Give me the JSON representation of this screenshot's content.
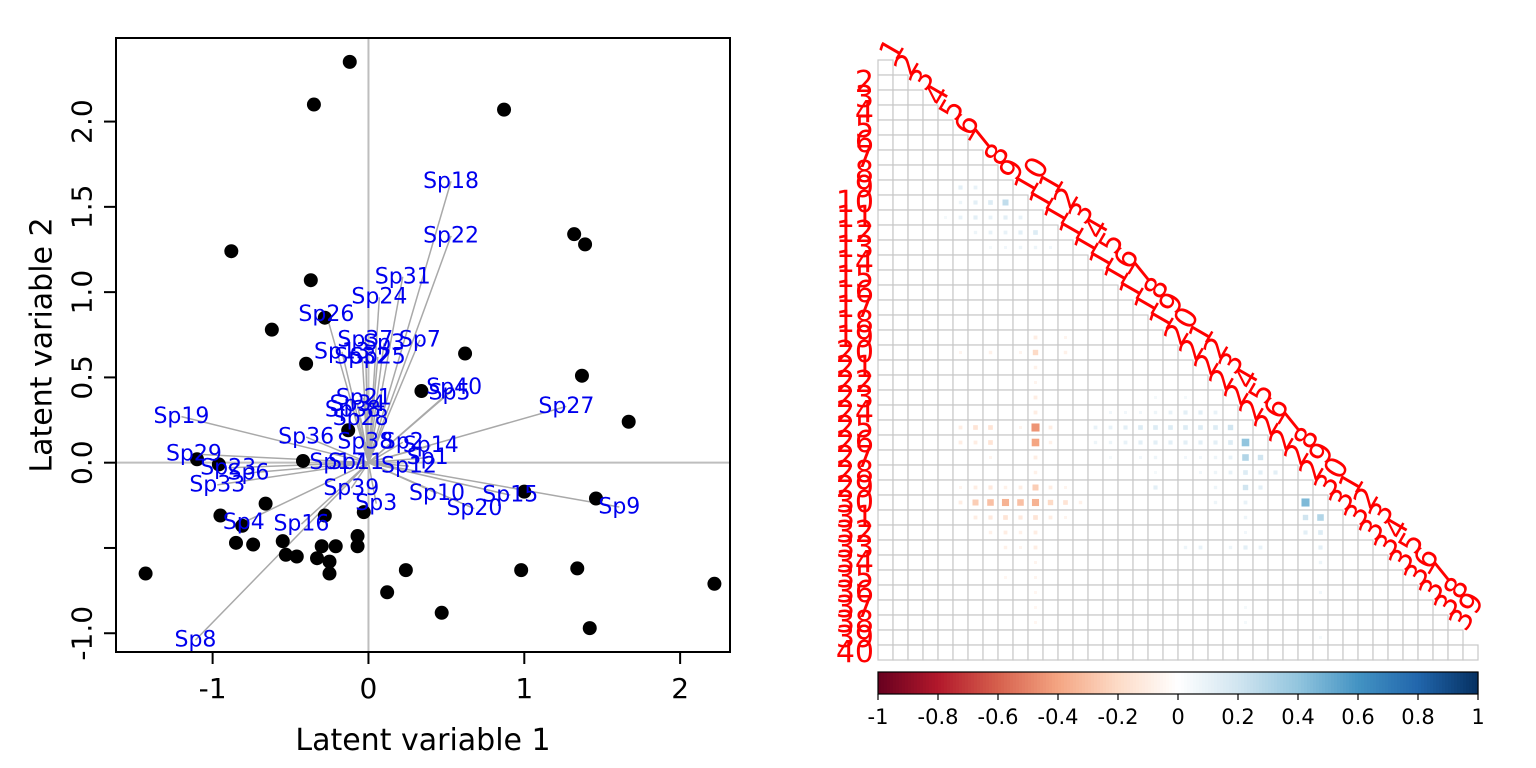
{
  "chart_data": [
    {
      "type": "scatter",
      "xlabel": "Latent variable 1",
      "ylabel": "Latent variable 2",
      "xlim": [
        -1.62,
        2.32
      ],
      "ylim": [
        -1.11,
        2.49
      ],
      "x_ticks": [
        -1,
        0,
        1,
        2
      ],
      "y_ticks": [
        -1.0,
        -0.5,
        0.0,
        0.5,
        1.0,
        1.5,
        2.0
      ],
      "x_tick_labels": [
        "-1",
        "0",
        "1",
        "2"
      ],
      "y_tick_labels": [
        "-1.0",
        "",
        "0.0",
        "0.5",
        "1.0",
        "1.5",
        "2.0"
      ],
      "reference_lines": {
        "x": 0,
        "y": 0
      },
      "sites": [
        {
          "x": -0.12,
          "y": 2.35
        },
        {
          "x": -0.35,
          "y": 2.1
        },
        {
          "x": 0.87,
          "y": 2.07
        },
        {
          "x": -0.88,
          "y": 1.24
        },
        {
          "x": 1.32,
          "y": 1.34
        },
        {
          "x": 1.39,
          "y": 1.28
        },
        {
          "x": -0.37,
          "y": 1.07
        },
        {
          "x": -0.28,
          "y": 0.85
        },
        {
          "x": -0.62,
          "y": 0.78
        },
        {
          "x": 0.62,
          "y": 0.64
        },
        {
          "x": -0.4,
          "y": 0.58
        },
        {
          "x": 1.37,
          "y": 0.51
        },
        {
          "x": 0.34,
          "y": 0.42
        },
        {
          "x": 1.67,
          "y": 0.24
        },
        {
          "x": -0.13,
          "y": 0.19
        },
        {
          "x": -1.1,
          "y": 0.02
        },
        {
          "x": -0.96,
          "y": -0.01
        },
        {
          "x": -0.42,
          "y": 0.01
        },
        {
          "x": 1.46,
          "y": -0.21
        },
        {
          "x": 1.0,
          "y": -0.17
        },
        {
          "x": -0.66,
          "y": -0.24
        },
        {
          "x": -0.95,
          "y": -0.31
        },
        {
          "x": -0.03,
          "y": -0.29
        },
        {
          "x": -0.81,
          "y": -0.37
        },
        {
          "x": -0.28,
          "y": -0.31
        },
        {
          "x": -0.85,
          "y": -0.47
        },
        {
          "x": -0.74,
          "y": -0.48
        },
        {
          "x": -0.55,
          "y": -0.46
        },
        {
          "x": -0.3,
          "y": -0.49
        },
        {
          "x": -0.21,
          "y": -0.49
        },
        {
          "x": -0.07,
          "y": -0.43
        },
        {
          "x": -0.07,
          "y": -0.49
        },
        {
          "x": -0.53,
          "y": -0.54
        },
        {
          "x": -0.46,
          "y": -0.55
        },
        {
          "x": -0.33,
          "y": -0.56
        },
        {
          "x": -0.25,
          "y": -0.58
        },
        {
          "x": -0.25,
          "y": -0.65
        },
        {
          "x": 0.24,
          "y": -0.63
        },
        {
          "x": 0.98,
          "y": -0.63
        },
        {
          "x": 1.34,
          "y": -0.62
        },
        {
          "x": -1.43,
          "y": -0.65
        },
        {
          "x": 0.12,
          "y": -0.76
        },
        {
          "x": 0.47,
          "y": -0.88
        },
        {
          "x": 1.42,
          "y": -0.97
        },
        {
          "x": 2.22,
          "y": -0.71
        }
      ],
      "species": [
        {
          "label": "Sp18",
          "x": 0.53,
          "y": 1.65
        },
        {
          "label": "Sp22",
          "x": 0.53,
          "y": 1.33
        },
        {
          "label": "Sp31",
          "x": 0.22,
          "y": 1.09
        },
        {
          "label": "Sp24",
          "x": 0.07,
          "y": 0.97
        },
        {
          "label": "Sp26",
          "x": -0.27,
          "y": 0.87
        },
        {
          "label": "Sp37",
          "x": -0.02,
          "y": 0.72
        },
        {
          "label": "Sp7",
          "x": 0.33,
          "y": 0.72
        },
        {
          "label": "Sp3",
          "x": 0.1,
          "y": 0.7
        },
        {
          "label": "Sp13",
          "x": -0.17,
          "y": 0.65
        },
        {
          "label": "Sp32",
          "x": -0.04,
          "y": 0.62
        },
        {
          "label": "Sp25",
          "x": 0.06,
          "y": 0.62
        },
        {
          "label": "Sp40",
          "x": 0.55,
          "y": 0.44
        },
        {
          "label": "Sp5",
          "x": 0.52,
          "y": 0.41
        },
        {
          "label": "Sp21",
          "x": -0.03,
          "y": 0.38
        },
        {
          "label": "Sp34",
          "x": -0.07,
          "y": 0.34
        },
        {
          "label": "Sp38",
          "x": -0.1,
          "y": 0.31
        },
        {
          "label": "Sp28",
          "x": -0.05,
          "y": 0.26
        },
        {
          "label": "Sp27",
          "x": 1.27,
          "y": 0.33
        },
        {
          "label": "Sp19",
          "x": -1.2,
          "y": 0.27
        },
        {
          "label": "Sp36",
          "x": -0.4,
          "y": 0.15
        },
        {
          "label": "Sp38b",
          "display": "Sp38",
          "x": -0.02,
          "y": 0.12
        },
        {
          "label": "Sp2",
          "x": 0.22,
          "y": 0.12
        },
        {
          "label": "Sp14",
          "x": 0.4,
          "y": 0.1
        },
        {
          "label": "Sp1",
          "x": 0.38,
          "y": 0.03
        },
        {
          "label": "Sp29",
          "x": -1.12,
          "y": 0.05
        },
        {
          "label": "Sp17",
          "x": -0.2,
          "y": 0.0
        },
        {
          "label": "Sp11",
          "x": -0.08,
          "y": 0.0
        },
        {
          "label": "Sp12",
          "x": 0.26,
          "y": -0.02
        },
        {
          "label": "Sp23",
          "x": -0.9,
          "y": -0.03
        },
        {
          "label": "Sp6",
          "x": -0.77,
          "y": -0.06
        },
        {
          "label": "Sp33",
          "x": -0.97,
          "y": -0.13
        },
        {
          "label": "Sp39",
          "x": -0.11,
          "y": -0.15
        },
        {
          "label": "Sp10",
          "x": 0.44,
          "y": -0.18
        },
        {
          "label": "Sp15",
          "x": 0.91,
          "y": -0.19
        },
        {
          "label": "Sp20",
          "x": 0.68,
          "y": -0.27
        },
        {
          "label": "Sp9",
          "x": 1.61,
          "y": -0.26
        },
        {
          "label": "Sp35",
          "display": "Sp3",
          "x": 0.05,
          "y": -0.24
        },
        {
          "label": "Sp4",
          "x": -0.8,
          "y": -0.35
        },
        {
          "label": "Sp16",
          "x": -0.43,
          "y": -0.36
        },
        {
          "label": "Sp8",
          "x": -1.11,
          "y": -1.04
        }
      ]
    },
    {
      "type": "heatmap",
      "description": "lower-triangular residual correlation matrix",
      "n": 40,
      "labels": [
        "1",
        "2",
        "3",
        "4",
        "5",
        "6",
        "7",
        "8",
        "9",
        "10",
        "11",
        "12",
        "13",
        "14",
        "15",
        "16",
        "17",
        "18",
        "19",
        "20",
        "21",
        "22",
        "23",
        "24",
        "25",
        "26",
        "27",
        "28",
        "29",
        "30",
        "31",
        "32",
        "33",
        "34",
        "35",
        "36",
        "37",
        "38",
        "39",
        "40"
      ],
      "colorbar": {
        "min": -1,
        "max": 1,
        "ticks": [
          -1,
          -0.8,
          -0.6,
          -0.4,
          -0.2,
          0,
          0.2,
          0.4,
          0.6,
          0.8,
          1
        ],
        "tick_labels": [
          "-1",
          "-0.8",
          "-0.6",
          "-0.4",
          "-0.2",
          "0",
          "0.2",
          "0.4",
          "0.6",
          "0.8",
          "1"
        ],
        "colors": [
          "#67001f",
          "#b2182b",
          "#d6604d",
          "#f4a582",
          "#fddbc7",
          "#ffffff",
          "#d1e5f0",
          "#92c5de",
          "#4393c3",
          "#2166ac",
          "#053061"
        ]
      },
      "cells": [
        [
          9,
          6,
          0.12
        ],
        [
          9,
          7,
          0.1
        ],
        [
          10,
          6,
          0.08
        ],
        [
          10,
          7,
          0.12
        ],
        [
          10,
          8,
          0.15
        ],
        [
          10,
          9,
          0.25
        ],
        [
          11,
          5,
          0.05
        ],
        [
          11,
          6,
          0.1
        ],
        [
          11,
          7,
          0.12
        ],
        [
          11,
          8,
          0.1
        ],
        [
          11,
          9,
          0.12
        ],
        [
          11,
          10,
          0.1
        ],
        [
          12,
          7,
          0.08
        ],
        [
          12,
          8,
          0.1
        ],
        [
          12,
          9,
          0.1
        ],
        [
          12,
          10,
          0.12
        ],
        [
          12,
          11,
          0.15
        ],
        [
          13,
          8,
          0.05
        ],
        [
          13,
          9,
          0.06
        ],
        [
          13,
          10,
          0.08
        ],
        [
          13,
          11,
          0.08
        ],
        [
          13,
          12,
          0.06
        ],
        [
          19,
          11,
          -0.1
        ],
        [
          19,
          13,
          -0.06
        ],
        [
          20,
          6,
          -0.06
        ],
        [
          20,
          8,
          -0.08
        ],
        [
          20,
          10,
          -0.06
        ],
        [
          20,
          11,
          -0.2
        ],
        [
          20,
          13,
          -0.08
        ],
        [
          21,
          11,
          -0.08
        ],
        [
          22,
          11,
          -0.06
        ],
        [
          23,
          11,
          -0.1
        ],
        [
          23,
          19,
          0.05
        ],
        [
          23,
          21,
          0.05
        ],
        [
          24,
          11,
          -0.1
        ],
        [
          24,
          16,
          0.06
        ],
        [
          24,
          17,
          0.06
        ],
        [
          24,
          18,
          0.06
        ],
        [
          24,
          19,
          0.08
        ],
        [
          24,
          20,
          0.1
        ],
        [
          24,
          21,
          0.12
        ],
        [
          24,
          22,
          0.12
        ],
        [
          24,
          23,
          0.1
        ],
        [
          25,
          6,
          -0.1
        ],
        [
          25,
          7,
          -0.15
        ],
        [
          25,
          8,
          -0.15
        ],
        [
          25,
          10,
          -0.06
        ],
        [
          25,
          11,
          -0.45
        ],
        [
          25,
          12,
          -0.1
        ],
        [
          25,
          15,
          0.1
        ],
        [
          25,
          16,
          0.1
        ],
        [
          25,
          17,
          0.12
        ],
        [
          25,
          18,
          0.15
        ],
        [
          25,
          19,
          0.15
        ],
        [
          25,
          20,
          0.15
        ],
        [
          25,
          21,
          0.15
        ],
        [
          25,
          22,
          0.15
        ],
        [
          25,
          23,
          0.15
        ],
        [
          25,
          24,
          0.2
        ],
        [
          26,
          6,
          -0.1
        ],
        [
          26,
          7,
          -0.1
        ],
        [
          26,
          8,
          -0.15
        ],
        [
          26,
          11,
          -0.4
        ],
        [
          26,
          12,
          -0.08
        ],
        [
          26,
          15,
          0.08
        ],
        [
          26,
          16,
          0.08
        ],
        [
          26,
          17,
          0.1
        ],
        [
          26,
          18,
          0.12
        ],
        [
          26,
          19,
          0.12
        ],
        [
          26,
          20,
          0.12
        ],
        [
          26,
          21,
          0.12
        ],
        [
          26,
          22,
          0.12
        ],
        [
          26,
          23,
          0.12
        ],
        [
          26,
          24,
          0.15
        ],
        [
          26,
          25,
          0.4
        ],
        [
          27,
          8,
          -0.06
        ],
        [
          27,
          11,
          -0.1
        ],
        [
          27,
          16,
          0.05
        ],
        [
          27,
          18,
          0.06
        ],
        [
          27,
          19,
          0.08
        ],
        [
          27,
          21,
          0.06
        ],
        [
          27,
          22,
          0.06
        ],
        [
          27,
          23,
          0.08
        ],
        [
          27,
          24,
          0.1
        ],
        [
          27,
          25,
          0.3
        ],
        [
          27,
          26,
          0.2
        ],
        [
          28,
          11,
          -0.08
        ],
        [
          28,
          19,
          0.05
        ],
        [
          28,
          22,
          0.06
        ],
        [
          28,
          23,
          0.08
        ],
        [
          28,
          24,
          0.1
        ],
        [
          28,
          25,
          0.15
        ],
        [
          28,
          26,
          0.12
        ],
        [
          28,
          27,
          0.12
        ],
        [
          29,
          6,
          -0.06
        ],
        [
          29,
          7,
          -0.1
        ],
        [
          29,
          8,
          -0.12
        ],
        [
          29,
          9,
          -0.08
        ],
        [
          29,
          10,
          -0.1
        ],
        [
          29,
          11,
          -0.25
        ],
        [
          29,
          12,
          -0.1
        ],
        [
          29,
          13,
          -0.06
        ],
        [
          29,
          19,
          0.12
        ],
        [
          29,
          23,
          0.08
        ],
        [
          29,
          25,
          0.2
        ],
        [
          29,
          26,
          0.12
        ],
        [
          30,
          6,
          -0.1
        ],
        [
          30,
          7,
          -0.25
        ],
        [
          30,
          8,
          -0.3
        ],
        [
          30,
          9,
          -0.35
        ],
        [
          30,
          10,
          -0.3
        ],
        [
          30,
          11,
          -0.35
        ],
        [
          30,
          12,
          -0.2
        ],
        [
          30,
          13,
          -0.15
        ],
        [
          30,
          14,
          -0.08
        ],
        [
          30,
          23,
          0.08
        ],
        [
          30,
          25,
          0.1
        ],
        [
          30,
          29,
          0.45
        ],
        [
          31,
          7,
          -0.1
        ],
        [
          31,
          8,
          -0.12
        ],
        [
          31,
          9,
          -0.15
        ],
        [
          31,
          10,
          -0.12
        ],
        [
          31,
          11,
          -0.15
        ],
        [
          31,
          12,
          -0.1
        ],
        [
          31,
          13,
          -0.06
        ],
        [
          31,
          25,
          0.08
        ],
        [
          31,
          29,
          0.2
        ],
        [
          31,
          30,
          0.3
        ],
        [
          32,
          8,
          -0.08
        ],
        [
          32,
          9,
          -0.1
        ],
        [
          32,
          10,
          -0.08
        ],
        [
          32,
          11,
          -0.1
        ],
        [
          32,
          25,
          0.06
        ],
        [
          32,
          29,
          0.12
        ],
        [
          32,
          30,
          0.15
        ],
        [
          33,
          9,
          -0.08
        ],
        [
          33,
          10,
          -0.06
        ],
        [
          33,
          11,
          -0.1
        ],
        [
          33,
          21,
          0.08
        ],
        [
          33,
          22,
          0.1
        ],
        [
          33,
          24,
          0.08
        ],
        [
          33,
          25,
          0.12
        ],
        [
          33,
          26,
          0.1
        ],
        [
          33,
          30,
          0.12
        ],
        [
          34,
          11,
          -0.06
        ],
        [
          34,
          30,
          0.08
        ],
        [
          35,
          9,
          -0.05
        ],
        [
          35,
          11,
          -0.06
        ],
        [
          36,
          11,
          -0.05
        ],
        [
          36,
          30,
          0.06
        ],
        [
          37,
          11,
          -0.05
        ],
        [
          37,
          25,
          0.05
        ],
        [
          38,
          11,
          -0.05
        ],
        [
          38,
          25,
          0.05
        ],
        [
          39,
          30,
          0.05
        ]
      ]
    }
  ]
}
